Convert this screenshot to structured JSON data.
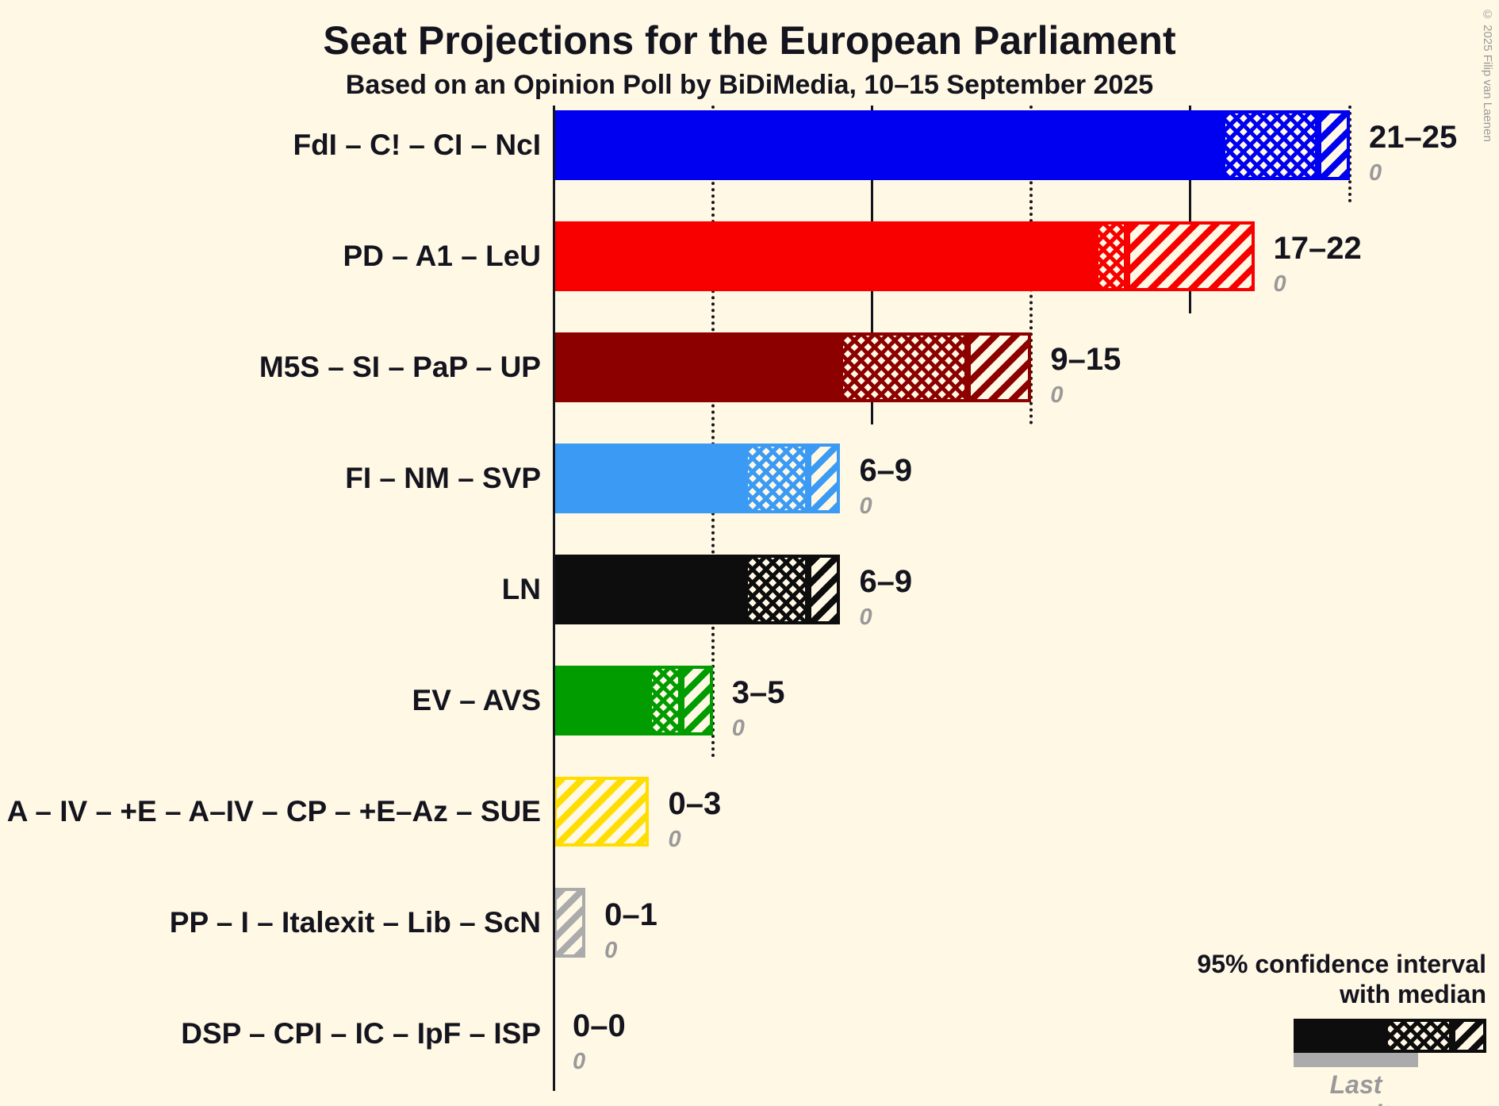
{
  "title": "Seat Projections for the European Parliament",
  "subtitle": "Based on an Opinion Poll by BiDiMedia, 10–15 September 2025",
  "copyright": "© 2025 Filip van Laenen",
  "legend": {
    "ci_label_line1": "95% confidence interval",
    "ci_label_line2": "with median",
    "last_result_label": "Last result"
  },
  "colors": {
    "background": "#FFF8E5",
    "text": "#14141E",
    "muted": "#999999",
    "axis": "#14141E"
  },
  "chart_data": {
    "type": "bar",
    "orientation": "horizontal",
    "unit": "seats",
    "title": "Seat Projections for the European Parliament",
    "subtitle": "Based on an Opinion Poll by BiDiMedia, 10–15 September 2025",
    "x_axis": {
      "min": 0,
      "max": 25,
      "solid_gridlines": [
        10,
        20
      ],
      "dotted_gridlines": [
        5,
        15,
        25
      ]
    },
    "series": [
      {
        "party": "FdI – C! – CI – NcI",
        "ci_low": 21,
        "median": 24,
        "ci_high": 25,
        "range_label": "21–25",
        "last_result": 0,
        "color": "#0000F0"
      },
      {
        "party": "PD – A1 – LeU",
        "ci_low": 17,
        "median": 18,
        "ci_high": 22,
        "range_label": "17–22",
        "last_result": 0,
        "color": "#F80000"
      },
      {
        "party": "M5S – SI – PaP – UP",
        "ci_low": 9,
        "median": 13,
        "ci_high": 15,
        "range_label": "9–15",
        "last_result": 0,
        "color": "#8C0000"
      },
      {
        "party": "FI – NM – SVP",
        "ci_low": 6,
        "median": 8,
        "ci_high": 9,
        "range_label": "6–9",
        "last_result": 0,
        "color": "#3B9BF4"
      },
      {
        "party": "LN",
        "ci_low": 6,
        "median": 8,
        "ci_high": 9,
        "range_label": "6–9",
        "last_result": 0,
        "color": "#0D0D0D"
      },
      {
        "party": "EV – AVS",
        "ci_low": 3,
        "median": 4,
        "ci_high": 5,
        "range_label": "3–5",
        "last_result": 0,
        "color": "#009C00"
      },
      {
        "party": "A – IV – +E – A–IV – CP – +E–Az – SUE",
        "ci_low": 0,
        "median": 0,
        "ci_high": 3,
        "range_label": "0–3",
        "last_result": 0,
        "color": "#FFDD00"
      },
      {
        "party": "PP – I – Italexit – Lib – ScN",
        "ci_low": 0,
        "median": 0,
        "ci_high": 1,
        "range_label": "0–1",
        "last_result": 0,
        "color": "#ABABAB"
      },
      {
        "party": "DSP – CPI – IC – IpF – ISP",
        "ci_low": 0,
        "median": 0,
        "ci_high": 0,
        "range_label": "0–0",
        "last_result": 0,
        "color": "#0D0D0D"
      }
    ],
    "legend_position": "bottom-right",
    "ci_note": "solid = below 95% CI low, crosshatch = CI low to median, diagonal hatch = median to CI high"
  }
}
